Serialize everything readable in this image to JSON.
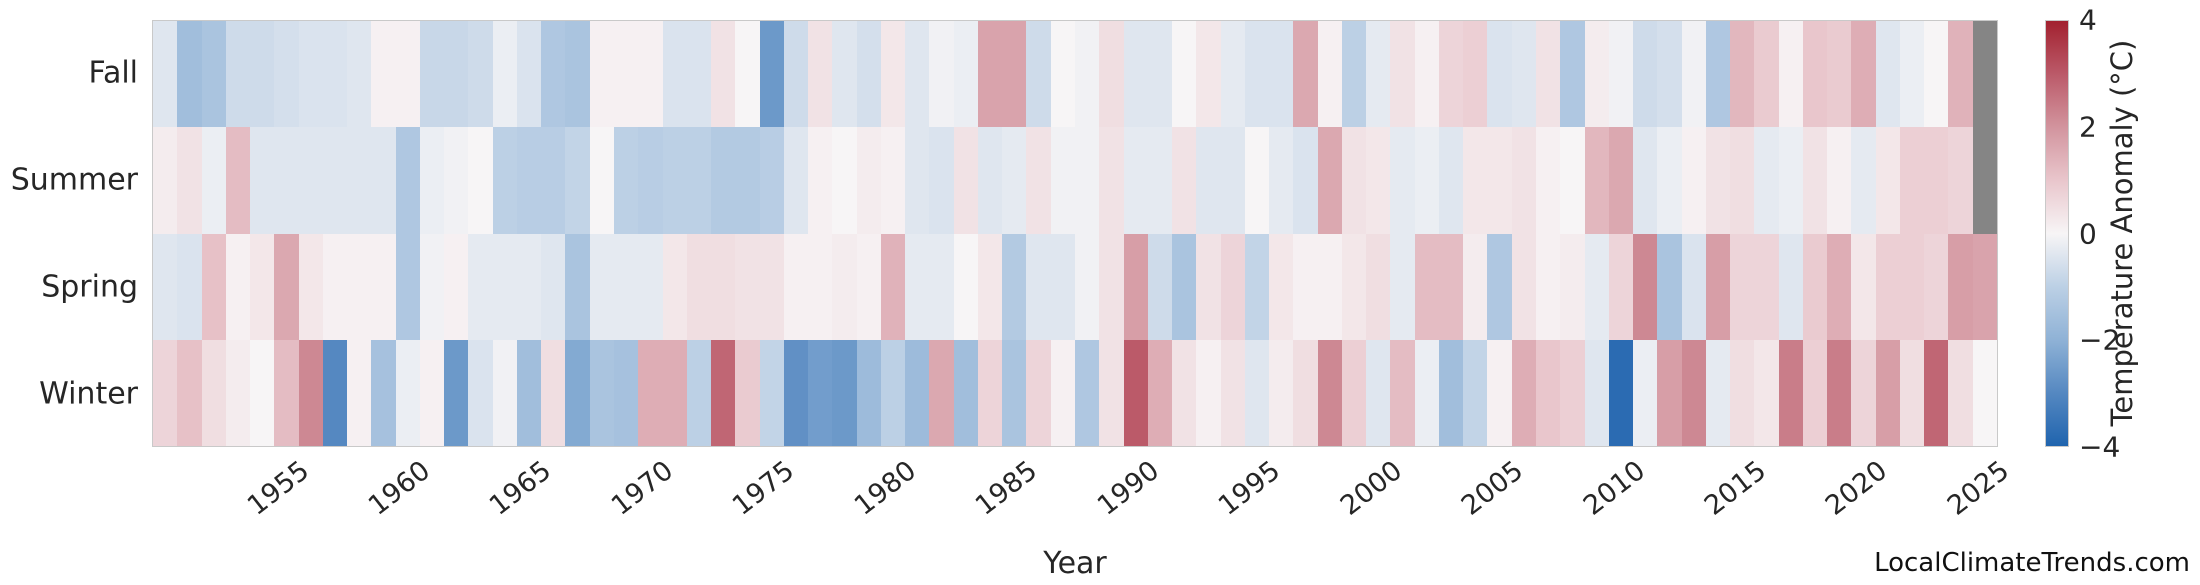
{
  "watermark": "LocalClimateTrends.com",
  "chart_data": {
    "type": "heatmap",
    "title": "",
    "xlabel": "Year",
    "rows": [
      "Fall",
      "Summer",
      "Spring",
      "Winter"
    ],
    "year_start": 1950,
    "year_end": 2025,
    "x_ticks": [
      1955,
      1960,
      1965,
      1970,
      1975,
      1980,
      1985,
      1990,
      1995,
      2000,
      2005,
      2010,
      2015,
      2020,
      2025
    ],
    "colorbar": {
      "label": "Temperature Anomaly (°C)",
      "tick_labels": [
        "4",
        "2",
        "0",
        "−2",
        "−4"
      ],
      "tick_values": [
        4,
        2,
        0,
        -2,
        -4
      ],
      "vmin": -4,
      "vmax": 4
    },
    "missing_color": "#858585",
    "colormap_stops": [
      [
        -4,
        "#2064ae"
      ],
      [
        -3,
        "#5588c1"
      ],
      [
        -2,
        "#8fb2d6"
      ],
      [
        -1,
        "#bcd0e5"
      ],
      [
        0,
        "#f7f5f6"
      ],
      [
        1,
        "#e9c6cc"
      ],
      [
        2,
        "#d2949e"
      ],
      [
        3,
        "#bb5a69"
      ],
      [
        4,
        "#a2212f"
      ]
    ],
    "series": [
      {
        "name": "Fall",
        "values": [
          -0.4,
          -1.6,
          -1.4,
          -0.7,
          -0.7,
          -0.6,
          -0.5,
          -0.5,
          -0.4,
          0.1,
          0.1,
          -0.8,
          -0.8,
          -0.7,
          -0.2,
          -0.5,
          -1.3,
          -1.4,
          0.1,
          0.1,
          0.1,
          -0.5,
          -0.5,
          0.4,
          0.0,
          -2.6,
          -0.7,
          0.4,
          -0.4,
          -0.6,
          0.3,
          -0.4,
          -0.1,
          -0.2,
          1.7,
          1.7,
          -0.7,
          0.0,
          -0.1,
          0.5,
          -0.4,
          -0.4,
          0.0,
          0.3,
          -0.3,
          -0.5,
          -0.5,
          1.6,
          0.1,
          -1.0,
          -0.3,
          0.4,
          0.1,
          0.7,
          0.8,
          -0.5,
          -0.4,
          0.4,
          -1.3,
          0.2,
          -0.1,
          -0.7,
          -0.6,
          -0.1,
          -1.3,
          1.3,
          0.9,
          0.1,
          1.0,
          0.9,
          1.5,
          -0.4,
          -0.2,
          0.0,
          1.4,
          null
        ]
      },
      {
        "name": "Summer",
        "values": [
          0.2,
          0.4,
          -0.2,
          1.2,
          -0.4,
          -0.4,
          -0.4,
          -0.4,
          -0.4,
          -0.4,
          -1.3,
          -0.2,
          -0.1,
          0.0,
          -1.0,
          -1.1,
          -1.1,
          -0.9,
          0.0,
          -1.0,
          -1.1,
          -1.0,
          -1.0,
          -1.2,
          -1.2,
          -1.1,
          -0.4,
          0.1,
          0.0,
          0.2,
          0.1,
          -0.4,
          -0.5,
          0.4,
          -0.4,
          -0.3,
          0.4,
          -0.1,
          -0.1,
          0.4,
          -0.3,
          -0.3,
          0.4,
          -0.4,
          -0.4,
          0.0,
          -0.3,
          -0.5,
          1.6,
          0.4,
          0.3,
          -0.3,
          -0.2,
          -0.4,
          0.3,
          0.3,
          0.4,
          0.1,
          0.0,
          1.3,
          1.6,
          -0.4,
          -0.2,
          0.1,
          0.4,
          0.5,
          -0.3,
          -0.2,
          0.4,
          0.1,
          -0.3,
          0.3,
          0.8,
          0.8,
          0.7,
          null
        ]
      },
      {
        "name": "Spring",
        "values": [
          -0.4,
          -0.5,
          1.1,
          0.1,
          0.3,
          1.6,
          0.3,
          0.1,
          0.1,
          0.1,
          -1.3,
          -0.1,
          0.1,
          -0.3,
          -0.3,
          -0.3,
          -0.4,
          -1.4,
          -0.3,
          -0.3,
          -0.3,
          0.3,
          0.5,
          0.5,
          0.4,
          0.4,
          0.1,
          0.1,
          0.2,
          0.1,
          1.4,
          -0.3,
          -0.3,
          0.0,
          0.3,
          -1.2,
          -0.4,
          -0.4,
          -0.1,
          0.4,
          1.8,
          -0.7,
          -1.4,
          0.4,
          0.7,
          -0.9,
          0.3,
          0.1,
          0.1,
          0.3,
          0.5,
          -0.3,
          1.2,
          1.2,
          0.2,
          -1.3,
          0.4,
          0.1,
          0.2,
          -0.3,
          0.7,
          2.2,
          -1.4,
          -0.5,
          1.8,
          0.7,
          0.7,
          -0.4,
          0.9,
          1.5,
          0.3,
          0.8,
          0.8,
          0.7,
          1.8,
          1.7
        ]
      },
      {
        "name": "Winter",
        "values": [
          0.7,
          1.1,
          0.5,
          0.2,
          0.0,
          1.2,
          2.2,
          -3.0,
          0.1,
          -1.5,
          -0.2,
          0.1,
          -2.6,
          -0.5,
          -0.1,
          -1.6,
          0.5,
          -2.2,
          -1.4,
          -1.5,
          1.5,
          1.5,
          -1.0,
          2.8,
          0.9,
          -0.9,
          -2.8,
          -2.5,
          -2.6,
          -1.7,
          -1.0,
          -1.7,
          1.6,
          -1.6,
          0.7,
          -1.4,
          0.7,
          0.1,
          -1.3,
          0.4,
          3.0,
          1.5,
          0.4,
          0.1,
          0.4,
          -0.4,
          0.2,
          0.5,
          2.2,
          0.8,
          -0.4,
          1.2,
          -0.2,
          -1.6,
          -0.9,
          0.1,
          1.5,
          1.0,
          0.8,
          -0.4,
          -3.8,
          -0.2,
          1.8,
          2.2,
          -0.3,
          0.5,
          0.3,
          2.4,
          0.8,
          2.4,
          0.7,
          1.8,
          0.5,
          2.8,
          0.5,
          0.0
        ]
      }
    ],
    "layout": {
      "grid": false,
      "legend": false,
      "colorbar_position": "right"
    }
  }
}
